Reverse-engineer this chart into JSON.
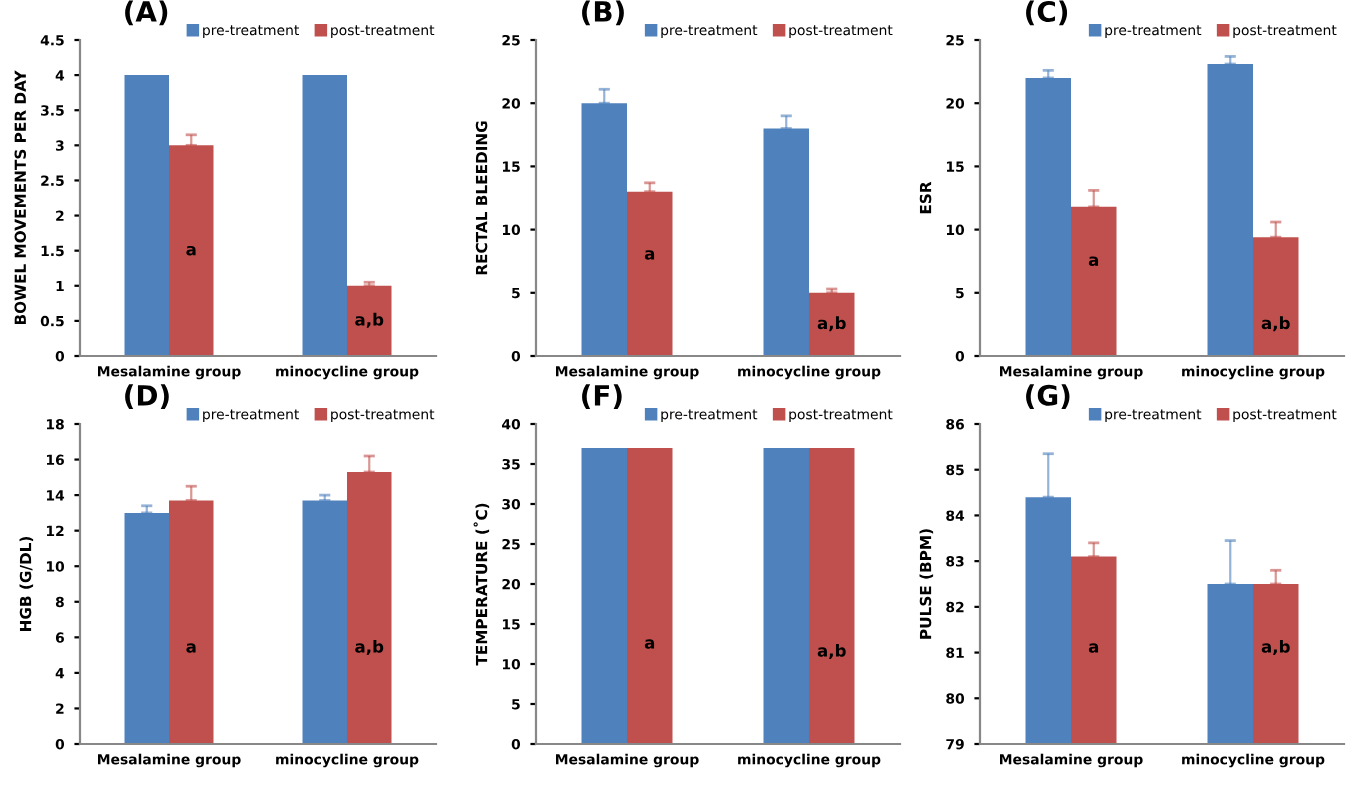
{
  "chart_data": [
    {
      "type": "bar",
      "title": "(A)",
      "ylabel": "BOWEL MOVEMENTS PER DAY",
      "categories": [
        "Mesalamine group",
        "minocycline group"
      ],
      "ylim": [
        0,
        4.5
      ],
      "yticks": [
        0,
        0.5,
        1,
        1.5,
        2,
        2.5,
        3,
        3.5,
        4,
        4.5
      ],
      "grid": false,
      "legend": "top",
      "series": [
        {
          "name": "pre-treatment",
          "color": "#4f81bd",
          "values": [
            4.0,
            4.0
          ],
          "errors": [
            null,
            null
          ]
        },
        {
          "name": "post-treatment",
          "color": "#c0504d",
          "values": [
            3.0,
            1.0
          ],
          "errors": [
            [
              3.0,
              3.15
            ],
            [
              1.0,
              1.05
            ]
          ]
        }
      ],
      "annotations": [
        {
          "text": "a",
          "x": "Mesalamine group",
          "y": 1.5
        },
        {
          "text": "a,b",
          "x": "minocycline group",
          "y": 0.5
        }
      ]
    },
    {
      "type": "bar",
      "title": "(B)",
      "ylabel": "RECTAL BLEEDING",
      "categories": [
        "Mesalamine group",
        "minocycline group"
      ],
      "ylim": [
        0,
        25
      ],
      "yticks": [
        0,
        5,
        10,
        15,
        20,
        25
      ],
      "grid": false,
      "legend": "top",
      "series": [
        {
          "name": "pre-treatment",
          "color": "#4f81bd",
          "values": [
            20,
            18
          ],
          "errors": [
            [
              20,
              21.1
            ],
            [
              18,
              19.0
            ]
          ]
        },
        {
          "name": "post-treatment",
          "color": "#c0504d",
          "values": [
            13,
            5
          ],
          "errors": [
            [
              13,
              13.7
            ],
            [
              5,
              5.3
            ]
          ]
        }
      ],
      "annotations": [
        {
          "text": "a",
          "x": "Mesalamine group",
          "y": 8
        },
        {
          "text": "a,b",
          "x": "minocycline group",
          "y": 2.5
        }
      ]
    },
    {
      "type": "bar",
      "title": "(C)",
      "ylabel": "ESR",
      "categories": [
        "Mesalamine group",
        "minocycline group"
      ],
      "ylim": [
        0,
        25
      ],
      "yticks": [
        0,
        5,
        10,
        15,
        20,
        25
      ],
      "grid": false,
      "legend": "top",
      "series": [
        {
          "name": "pre-treatment",
          "color": "#4f81bd",
          "values": [
            22,
            23.1
          ],
          "errors": [
            [
              22,
              22.6
            ],
            [
              23.1,
              23.7
            ]
          ]
        },
        {
          "name": "post-treatment",
          "color": "#c0504d",
          "values": [
            11.8,
            9.4
          ],
          "errors": [
            [
              11.8,
              13.1
            ],
            [
              9.4,
              10.6
            ]
          ]
        }
      ],
      "annotations": [
        {
          "text": "a",
          "x": "Mesalamine group",
          "y": 7.5
        },
        {
          "text": "a,b",
          "x": "minocycline group",
          "y": 2.5
        }
      ]
    },
    {
      "type": "bar",
      "title": "(D)",
      "ylabel": "HGB (G/DL)",
      "categories": [
        "Mesalamine group",
        "minocycline group"
      ],
      "ylim": [
        0,
        18
      ],
      "yticks": [
        0,
        2,
        4,
        6,
        8,
        10,
        12,
        14,
        16,
        18
      ],
      "grid": false,
      "legend": "top",
      "series": [
        {
          "name": "pre-treatment",
          "color": "#4f81bd",
          "values": [
            13.0,
            13.7
          ],
          "errors": [
            [
              13.0,
              13.4
            ],
            [
              13.7,
              14.0
            ]
          ]
        },
        {
          "name": "post-treatment",
          "color": "#c0504d",
          "values": [
            13.7,
            15.3
          ],
          "errors": [
            [
              13.7,
              14.5
            ],
            [
              15.3,
              16.2
            ]
          ]
        }
      ],
      "annotations": [
        {
          "text": "a",
          "x": "Mesalamine group",
          "y": 5.4
        },
        {
          "text": "a,b",
          "x": "minocycline group",
          "y": 5.4
        }
      ]
    },
    {
      "type": "bar",
      "title": "(F)",
      "ylabel": "TEMPERATURE (˚C)",
      "categories": [
        "Mesalamine group",
        "minocycline group"
      ],
      "ylim": [
        0,
        40
      ],
      "yticks": [
        0,
        5,
        10,
        15,
        20,
        25,
        30,
        35,
        40
      ],
      "grid": false,
      "legend": "top",
      "series": [
        {
          "name": "pre-treatment",
          "color": "#4f81bd",
          "values": [
            37,
            37
          ],
          "errors": [
            null,
            null
          ]
        },
        {
          "name": "post-treatment",
          "color": "#c0504d",
          "values": [
            37,
            37
          ],
          "errors": [
            null,
            null
          ]
        }
      ],
      "annotations": [
        {
          "text": "a",
          "x": "Mesalamine group",
          "y": 12.5
        },
        {
          "text": "a,b",
          "x": "minocycline group",
          "y": 11.5
        }
      ]
    },
    {
      "type": "bar",
      "title": "(G)",
      "ylabel": "PULSE (BPM)",
      "categories": [
        "Mesalamine group",
        "minocycline group"
      ],
      "ylim": [
        79,
        86
      ],
      "yticks": [
        79,
        80,
        81,
        82,
        83,
        84,
        85,
        86
      ],
      "grid": false,
      "legend": "top",
      "series": [
        {
          "name": "pre-treatment",
          "color": "#4f81bd",
          "values": [
            84.4,
            82.5
          ],
          "errors": [
            [
              84.4,
              85.35
            ],
            [
              82.5,
              83.45
            ]
          ]
        },
        {
          "name": "post-treatment",
          "color": "#c0504d",
          "values": [
            83.1,
            82.5
          ],
          "errors": [
            [
              83.1,
              83.4
            ],
            [
              82.5,
              82.8
            ]
          ]
        }
      ],
      "annotations": [
        {
          "text": "a",
          "x": "Mesalamine group",
          "y": 81.1
        },
        {
          "text": "a,b",
          "x": "minocycline group",
          "y": 81.1
        }
      ]
    }
  ]
}
